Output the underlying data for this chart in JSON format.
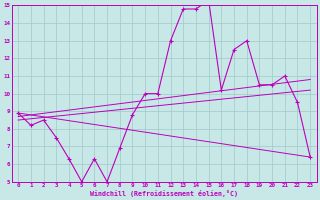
{
  "background_color": "#c8e8e8",
  "grid_color": "#a0c8c8",
  "line_color": "#bb00bb",
  "xlabel": "Windchill (Refroidissement éolien,°C)",
  "xlim": [
    -0.5,
    23.5
  ],
  "ylim": [
    5,
    15
  ],
  "yticks": [
    5,
    6,
    7,
    8,
    9,
    10,
    11,
    12,
    13,
    14,
    15
  ],
  "xticks": [
    0,
    1,
    2,
    3,
    4,
    5,
    6,
    7,
    8,
    9,
    10,
    11,
    12,
    13,
    14,
    15,
    16,
    17,
    18,
    19,
    20,
    21,
    22,
    23
  ],
  "series1_x": [
    0,
    1,
    2,
    3,
    4,
    5,
    6,
    7,
    8,
    9,
    10,
    11,
    12,
    13,
    14,
    15,
    16,
    17,
    18,
    19,
    20,
    21,
    22,
    23
  ],
  "series1_y": [
    8.9,
    8.2,
    8.5,
    7.5,
    6.3,
    5.0,
    6.3,
    5.0,
    6.9,
    8.8,
    10.0,
    10.0,
    13.0,
    14.8,
    14.8,
    15.3,
    10.2,
    12.5,
    13.0,
    10.5,
    10.5,
    11.0,
    9.5,
    6.4
  ],
  "trend1_x": [
    0,
    23
  ],
  "trend1_y": [
    8.9,
    6.4
  ],
  "trend2_x": [
    0,
    23
  ],
  "trend2_y": [
    8.7,
    10.8
  ],
  "trend3_x": [
    0,
    23
  ],
  "trend3_y": [
    8.5,
    10.2
  ]
}
